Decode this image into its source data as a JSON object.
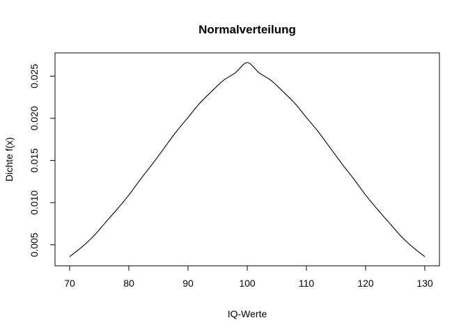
{
  "chart_data": {
    "type": "line",
    "title": "Normalverteilung",
    "xlabel": "IQ-Werte",
    "ylabel": "Dichte f(x)",
    "xlim": [
      70,
      130
    ],
    "ylim": [
      0.0035,
      0.0266
    ],
    "xticks": [
      70,
      80,
      90,
      100,
      110,
      120,
      130
    ],
    "yticks": [
      "0.005",
      "0.010",
      "0.015",
      "0.020",
      "0.025"
    ],
    "grid": false,
    "legend": "none",
    "series": [
      {
        "x": [
          70,
          72,
          74,
          76,
          78,
          80,
          82,
          84,
          86,
          88,
          90,
          92,
          94,
          96,
          98,
          100,
          102,
          104,
          106,
          108,
          110,
          112,
          114,
          116,
          118,
          120,
          122,
          124,
          126,
          128,
          130
        ],
        "y": [
          0.0036,
          0.0047,
          0.006,
          0.0076,
          0.0092,
          0.0109,
          0.0128,
          0.0146,
          0.0165,
          0.0184,
          0.0201,
          0.0218,
          0.0232,
          0.0245,
          0.0254,
          0.0266,
          0.0254,
          0.0245,
          0.0232,
          0.0218,
          0.0201,
          0.0184,
          0.0165,
          0.0146,
          0.0128,
          0.0109,
          0.0092,
          0.0076,
          0.006,
          0.0047,
          0.0036
        ]
      }
    ]
  }
}
